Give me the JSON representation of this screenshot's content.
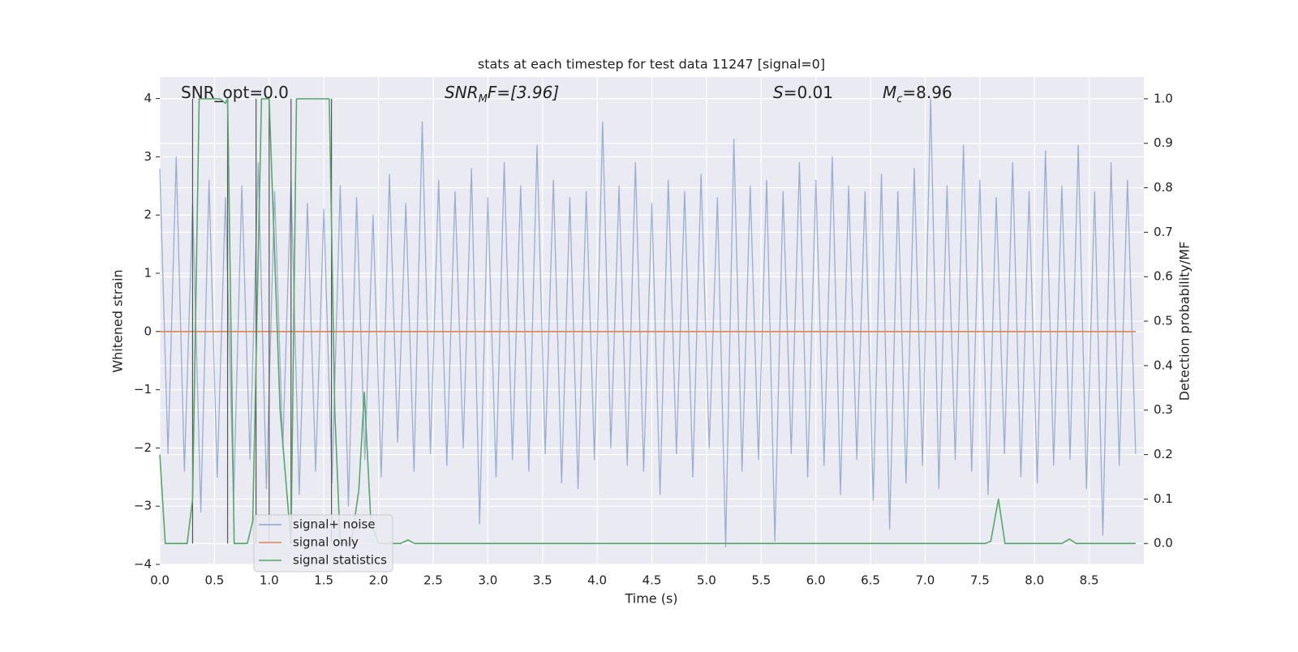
{
  "chart_data": {
    "type": "line",
    "title": "stats at each timestep for test data 11247 [signal=0]",
    "xlabel": "Time (s)",
    "ylabel": "Whitened strain",
    "y2label": "Detection probability/MF",
    "annotations": [
      {
        "main": "SNR_opt=0.0"
      },
      {
        "main": "SNR",
        "sub": "M",
        "rest": "F=[3.96]"
      },
      {
        "main": "S",
        "rest": "=0.01"
      },
      {
        "main": "M",
        "sub": "c",
        "rest": "=8.96"
      }
    ],
    "xlim": [
      0,
      9
    ],
    "ylim": [
      -4,
      4.37
    ],
    "y2lim": [
      -0.047,
      1.049
    ],
    "xticks": [
      {
        "value": 0,
        "label": "0.0"
      },
      {
        "value": 0.5,
        "label": "0.5"
      },
      {
        "value": 1,
        "label": "1.0"
      },
      {
        "value": 1.5,
        "label": "1.5"
      },
      {
        "value": 2,
        "label": "2.0"
      },
      {
        "value": 2.5,
        "label": "2.5"
      },
      {
        "value": 3,
        "label": "3.0"
      },
      {
        "value": 3.5,
        "label": "3.5"
      },
      {
        "value": 4,
        "label": "4.0"
      },
      {
        "value": 4.5,
        "label": "4.5"
      },
      {
        "value": 5,
        "label": "5.0"
      },
      {
        "value": 5.5,
        "label": "5.5"
      },
      {
        "value": 6,
        "label": "6.0"
      },
      {
        "value": 6.5,
        "label": "6.5"
      },
      {
        "value": 7,
        "label": "7.0"
      },
      {
        "value": 7.5,
        "label": "7.5"
      },
      {
        "value": 8,
        "label": "8.0"
      },
      {
        "value": 8.5,
        "label": "8.5"
      }
    ],
    "yticks": [
      {
        "value": -4,
        "label": "−4"
      },
      {
        "value": -3,
        "label": "−3"
      },
      {
        "value": -2,
        "label": "−2"
      },
      {
        "value": -1,
        "label": "−1"
      },
      0,
      1,
      2,
      3,
      4
    ],
    "y2ticks": [
      {
        "value": 0,
        "label": "0.0"
      },
      {
        "value": 0.1,
        "label": "0.1"
      },
      {
        "value": 0.2,
        "label": "0.2"
      },
      {
        "value": 0.3,
        "label": "0.3"
      },
      {
        "value": 0.4,
        "label": "0.4"
      },
      {
        "value": 0.5,
        "label": "0.5"
      },
      {
        "value": 0.6,
        "label": "0.6"
      },
      {
        "value": 0.7,
        "label": "0.7"
      },
      {
        "value": 0.8,
        "label": "0.8"
      },
      {
        "value": 0.9,
        "label": "0.9"
      },
      {
        "value": 1,
        "label": "1.0"
      }
    ],
    "grid": true,
    "legend": "lower left",
    "vlines": {
      "color": "#555555",
      "x": [
        0.3,
        0.62,
        0.88,
        1.0,
        1.2,
        1.57
      ]
    },
    "series": [
      {
        "name": "signal+ noise",
        "color": "#4c72b0",
        "x": [
          0,
          0.075,
          0.15,
          0.225,
          0.3,
          0.375,
          0.45,
          0.525,
          0.6,
          0.675,
          0.75,
          0.825,
          0.9,
          0.975,
          1.05,
          1.125,
          1.2,
          1.275,
          1.35,
          1.425,
          1.5,
          1.575,
          1.65,
          1.725,
          1.8,
          1.875,
          1.95,
          2.025,
          2.1,
          2.175,
          2.25,
          2.325,
          2.4,
          2.475,
          2.55,
          2.625,
          2.7,
          2.775,
          2.85,
          2.925,
          3,
          3.075,
          3.15,
          3.225,
          3.3,
          3.375,
          3.45,
          3.525,
          3.6,
          3.675,
          3.75,
          3.825,
          3.9,
          3.975,
          4.05,
          4.125,
          4.2,
          4.275,
          4.35,
          4.425,
          4.5,
          4.575,
          4.65,
          4.725,
          4.8,
          4.875,
          4.95,
          5.025,
          5.1,
          5.175,
          5.25,
          5.325,
          5.4,
          5.475,
          5.55,
          5.625,
          5.7,
          5.775,
          5.85,
          5.925,
          6,
          6.075,
          6.15,
          6.225,
          6.3,
          6.375,
          6.45,
          6.525,
          6.6,
          6.675,
          6.75,
          6.825,
          6.9,
          6.975,
          7.05,
          7.125,
          7.2,
          7.275,
          7.35,
          7.425,
          7.5,
          7.575,
          7.65,
          7.725,
          7.8,
          7.875,
          7.95,
          8.025,
          8.1,
          8.175,
          8.25,
          8.325,
          8.4,
          8.475,
          8.55,
          8.625,
          8.7,
          8.775,
          8.85,
          8.925
        ],
        "values": [
          2.8,
          -2.1,
          3.0,
          -2.4,
          2.2,
          -3.1,
          2.6,
          -2.5,
          2.3,
          -2.9,
          2.5,
          -2.2,
          2.9,
          -2.7,
          2.4,
          -2.0,
          2.6,
          -2.8,
          2.2,
          -2.4,
          2.1,
          -2.6,
          2.5,
          -3.0,
          2.3,
          -2.2,
          2.0,
          -2.5,
          2.7,
          -1.9,
          2.2,
          -2.4,
          3.6,
          -2.1,
          2.6,
          -2.3,
          2.4,
          -2.0,
          2.8,
          -3.3,
          2.3,
          -2.5,
          2.9,
          -2.2,
          2.5,
          -2.4,
          3.2,
          -2.1,
          2.6,
          -2.6,
          2.3,
          -2.7,
          2.4,
          -2.2,
          3.6,
          -2.0,
          2.5,
          -2.3,
          2.9,
          -2.4,
          2.2,
          -2.8,
          2.6,
          -2.1,
          2.4,
          -2.5,
          2.7,
          -2.0,
          2.3,
          -3.7,
          3.3,
          -2.4,
          2.5,
          -2.2,
          2.6,
          -3.6,
          2.4,
          -2.1,
          2.9,
          -2.5,
          2.6,
          -2.3,
          3.0,
          -2.8,
          2.5,
          -2.2,
          2.4,
          -2.9,
          2.7,
          -3.4,
          2.4,
          -2.6,
          2.8,
          -2.3,
          4.0,
          -2.7,
          2.5,
          -2.2,
          3.2,
          -2.4,
          2.6,
          -2.8,
          2.3,
          -2.1,
          2.9,
          -2.5,
          2.4,
          -2.6,
          3.1,
          -2.3,
          2.5,
          -2.2,
          3.2,
          -2.7,
          2.4,
          -3.5,
          2.9,
          -2.3,
          2.6,
          -2.1
        ]
      },
      {
        "name": "signal only",
        "color": "#dd8452",
        "x": [
          0,
          8.925
        ],
        "values": [
          0,
          0
        ]
      },
      {
        "name": "signal statistics",
        "color": "#55a868",
        "axis": "y2",
        "x": [
          0,
          0.05,
          0.25,
          0.3,
          0.36,
          0.55,
          0.6,
          0.62,
          0.68,
          0.8,
          0.85,
          0.93,
          1.0,
          1.1,
          1.2,
          1.25,
          1.55,
          1.6,
          1.65,
          1.75,
          1.82,
          1.87,
          1.93,
          2.0,
          2.2,
          2.27,
          2.33,
          7.55,
          7.6,
          7.67,
          7.73,
          8.25,
          8.32,
          8.38,
          8.925
        ],
        "values": [
          0.2,
          0.0,
          0.0,
          0.1,
          1.0,
          1.0,
          0.99,
          1.0,
          0.0,
          0.0,
          0.05,
          1.0,
          1.0,
          0.3,
          0.0,
          1.0,
          1.0,
          0.3,
          0.0,
          0.0,
          0.12,
          0.34,
          0.05,
          0.0,
          0.0,
          0.008,
          0.0,
          0.0,
          0.005,
          0.1,
          0.0,
          0.0,
          0.01,
          0.0,
          0.0
        ]
      }
    ]
  }
}
